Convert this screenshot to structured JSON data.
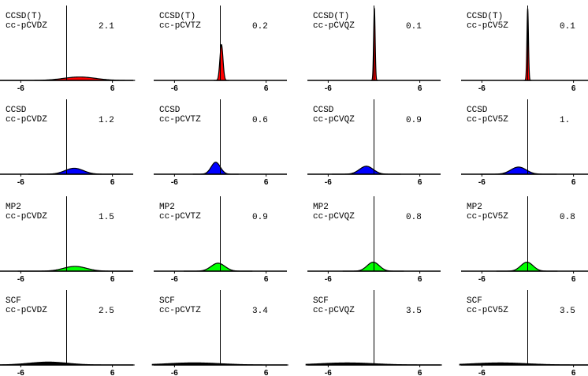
{
  "colors": {
    "CCSD(T)": "#ff0000",
    "CCSD": "#0000ff",
    "MP2": "#00ff00",
    "SCF": "#000000"
  },
  "chart_data": {
    "type": "area",
    "description_layout": "4x4 grid of error-distribution curves; rows = methods, columns = basis sets",
    "xlim": [
      -8,
      8
    ],
    "xticks": [
      "-6",
      "6"
    ],
    "reference_line_x": 0,
    "methods": [
      "CCSD(T)",
      "CCSD",
      "MP2",
      "SCF"
    ],
    "basis_sets": [
      "cc-pCVDZ",
      "cc-pCVTZ",
      "cc-pCVQZ",
      "cc-pCV5Z"
    ],
    "panels": [
      {
        "method": "CCSD(T)",
        "basis": "cc-pCVDZ",
        "value": "2.1",
        "mean": 1.7,
        "sd": 2.1
      },
      {
        "method": "CCSD(T)",
        "basis": "cc-pCVTZ",
        "value": "0.2",
        "mean": 0.15,
        "sd": 0.2
      },
      {
        "method": "CCSD(T)",
        "basis": "cc-pCVQZ",
        "value": "0.1",
        "mean": 0.05,
        "sd": 0.1
      },
      {
        "method": "CCSD(T)",
        "basis": "cc-pCV5Z",
        "value": "0.1",
        "mean": 0.0,
        "sd": 0.1
      },
      {
        "method": "CCSD",
        "basis": "cc-pCVDZ",
        "value": "1.2",
        "mean": 1.0,
        "sd": 1.2
      },
      {
        "method": "CCSD",
        "basis": "cc-pCVTZ",
        "value": "0.6",
        "mean": -0.6,
        "sd": 0.6
      },
      {
        "method": "CCSD",
        "basis": "cc-pCVQZ",
        "value": "0.9",
        "mean": -1.0,
        "sd": 0.9
      },
      {
        "method": "CCSD",
        "basis": "cc-pCV5Z",
        "value": "1.",
        "mean": -1.2,
        "sd": 1.0
      },
      {
        "method": "MP2",
        "basis": "cc-pCVDZ",
        "value": "1.5",
        "mean": 1.1,
        "sd": 1.5
      },
      {
        "method": "MP2",
        "basis": "cc-pCVTZ",
        "value": "0.9",
        "mean": -0.3,
        "sd": 0.9
      },
      {
        "method": "MP2",
        "basis": "cc-pCVQZ",
        "value": "0.8",
        "mean": -0.1,
        "sd": 0.8
      },
      {
        "method": "MP2",
        "basis": "cc-pCV5Z",
        "value": "0.8",
        "mean": -0.1,
        "sd": 0.8
      },
      {
        "method": "SCF",
        "basis": "cc-pCVDZ",
        "value": "2.5",
        "mean": -2.4,
        "sd": 2.5
      },
      {
        "method": "SCF",
        "basis": "cc-pCVTZ",
        "value": "3.4",
        "mean": -3.4,
        "sd": 3.4
      },
      {
        "method": "SCF",
        "basis": "cc-pCVQZ",
        "value": "3.5",
        "mean": -3.5,
        "sd": 3.5
      },
      {
        "method": "SCF",
        "basis": "cc-pCV5Z",
        "value": "3.5",
        "mean": -3.6,
        "sd": 3.5
      }
    ]
  }
}
